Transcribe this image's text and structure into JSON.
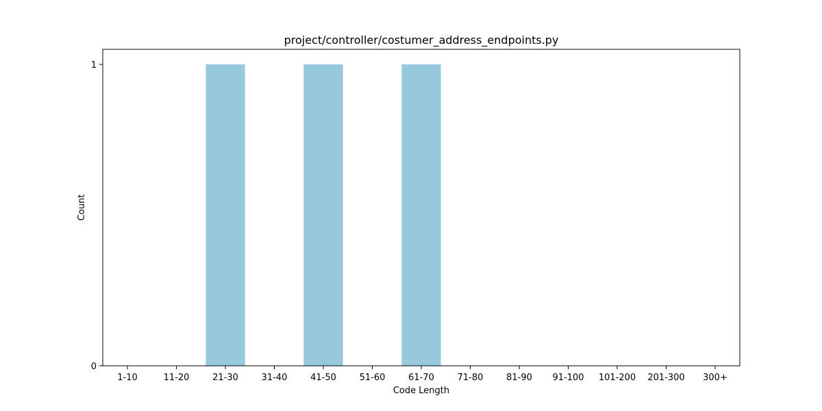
{
  "chart_data": {
    "type": "bar",
    "title": "project/controller/costumer_address_endpoints.py",
    "xlabel": "Code Length",
    "ylabel": "Count",
    "categories": [
      "1-10",
      "11-20",
      "21-30",
      "31-40",
      "41-50",
      "51-60",
      "61-70",
      "71-80",
      "81-90",
      "91-100",
      "101-200",
      "201-300",
      "300+"
    ],
    "values": [
      0,
      0,
      1,
      0,
      1,
      0,
      1,
      0,
      0,
      0,
      0,
      0,
      0
    ],
    "ylim": [
      0,
      1.05
    ],
    "yticks": [
      0,
      1
    ],
    "grid": false,
    "legend": "none",
    "bar_color": "#96c9dc"
  }
}
